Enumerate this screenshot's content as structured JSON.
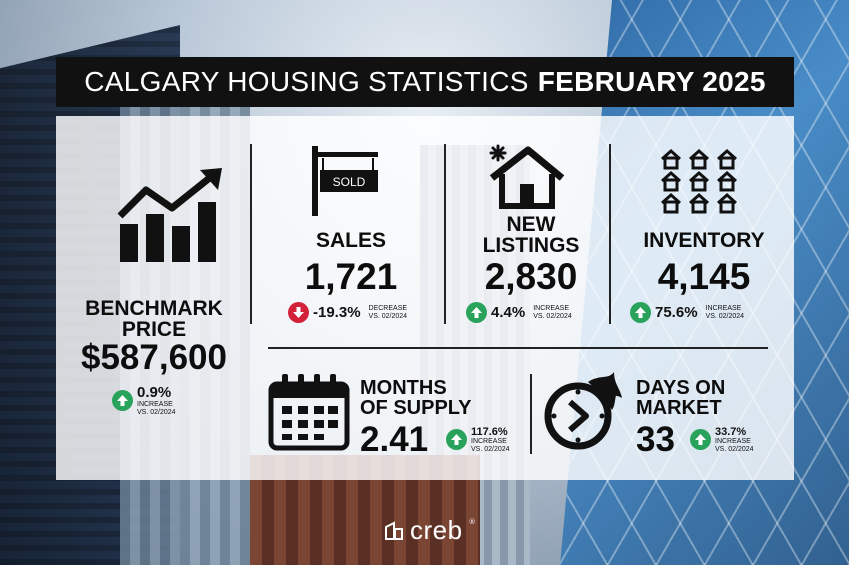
{
  "title": {
    "regular": "CALGARY HOUSING STATISTICS",
    "bold": "FEBRUARY 2025"
  },
  "sign_text": "SOLD",
  "colors": {
    "increase": "#29a35b",
    "decrease": "#d4213a",
    "title_bg": "#111111"
  },
  "benchmark": {
    "label_line1": "BENCHMARK",
    "label_line2": "PRICE",
    "value": "$587,600",
    "pct": "0.9%",
    "dir": "INCREASE",
    "vs": "VS. 02/2024",
    "trend": "up",
    "icon": "bar-chart-up-icon"
  },
  "sales": {
    "label": "SALES",
    "value": "1,721",
    "pct": "-19.3%",
    "dir": "DECREASE",
    "vs": "VS. 02/2024",
    "trend": "down",
    "icon": "sold-sign-icon"
  },
  "new_listings": {
    "label_line1": "NEW",
    "label_line2": "LISTINGS",
    "value": "2,830",
    "pct": "4.4%",
    "dir": "INCREASE",
    "vs": "VS. 02/2024",
    "trend": "up",
    "icon": "new-house-icon"
  },
  "inventory": {
    "label": "INVENTORY",
    "value": "4,145",
    "pct": "75.6%",
    "dir": "INCREASE",
    "vs": "VS. 02/2024",
    "trend": "up",
    "icon": "houses-grid-icon"
  },
  "months_supply": {
    "label_line1": "MONTHS",
    "label_line2": "OF SUPPLY",
    "value": "2.41",
    "pct": "117.6%",
    "dir": "INCREASE",
    "vs": "VS. 02/2024",
    "trend": "up",
    "icon": "calendar-icon"
  },
  "days_on_market": {
    "label_line1": "DAYS ON",
    "label_line2": "MARKET",
    "value": "33",
    "pct": "33.7%",
    "dir": "INCREASE",
    "vs": "VS. 02/2024",
    "trend": "up",
    "icon": "fast-clock-icon"
  },
  "footer": {
    "brand": "creb",
    "reg": "®",
    "icon": "creb-logo-icon"
  }
}
